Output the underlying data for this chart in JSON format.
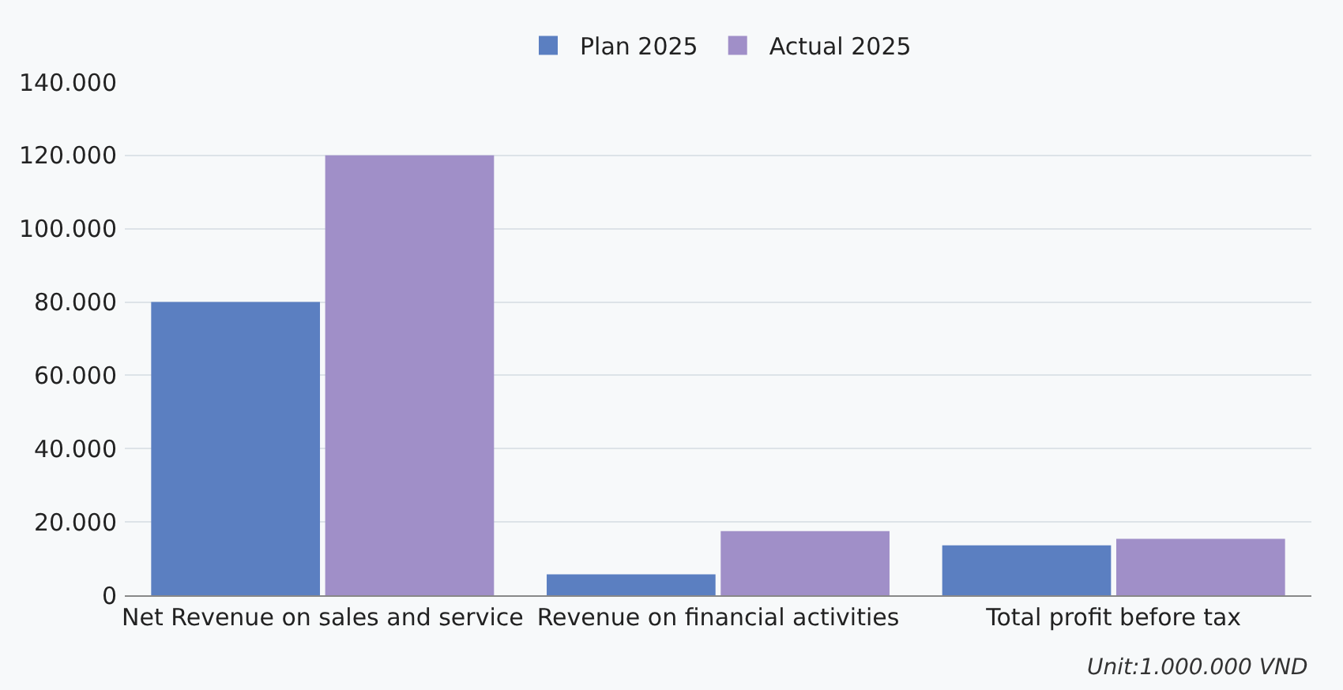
{
  "chart_data": {
    "type": "bar",
    "categories": [
      "Net Revenue on sales and service",
      "Revenue on financial activities",
      "Total profit before tax"
    ],
    "series": [
      {
        "name": "Plan 2025",
        "color": "#5b7fc1",
        "values": [
          80000,
          5700,
          13600
        ]
      },
      {
        "name": "Actual 2025",
        "color": "#a08fc8",
        "values": [
          120000,
          17500,
          15400
        ]
      }
    ],
    "ylim": [
      0,
      140000
    ],
    "yticks": [
      0,
      {
        "value": 20000,
        "label": "20.000"
      },
      {
        "value": 40000,
        "label": "40.000"
      },
      {
        "value": 60000,
        "label": "60.000"
      },
      {
        "value": 80000,
        "label": "80.000"
      },
      {
        "value": 100000,
        "label": "100.000"
      },
      {
        "value": 120000,
        "label": "120.000"
      },
      {
        "value": 140000,
        "label": "140.000"
      }
    ],
    "grid": "y",
    "legend": "top",
    "annotations": [
      "Unit:1.000.000 VND"
    ]
  }
}
